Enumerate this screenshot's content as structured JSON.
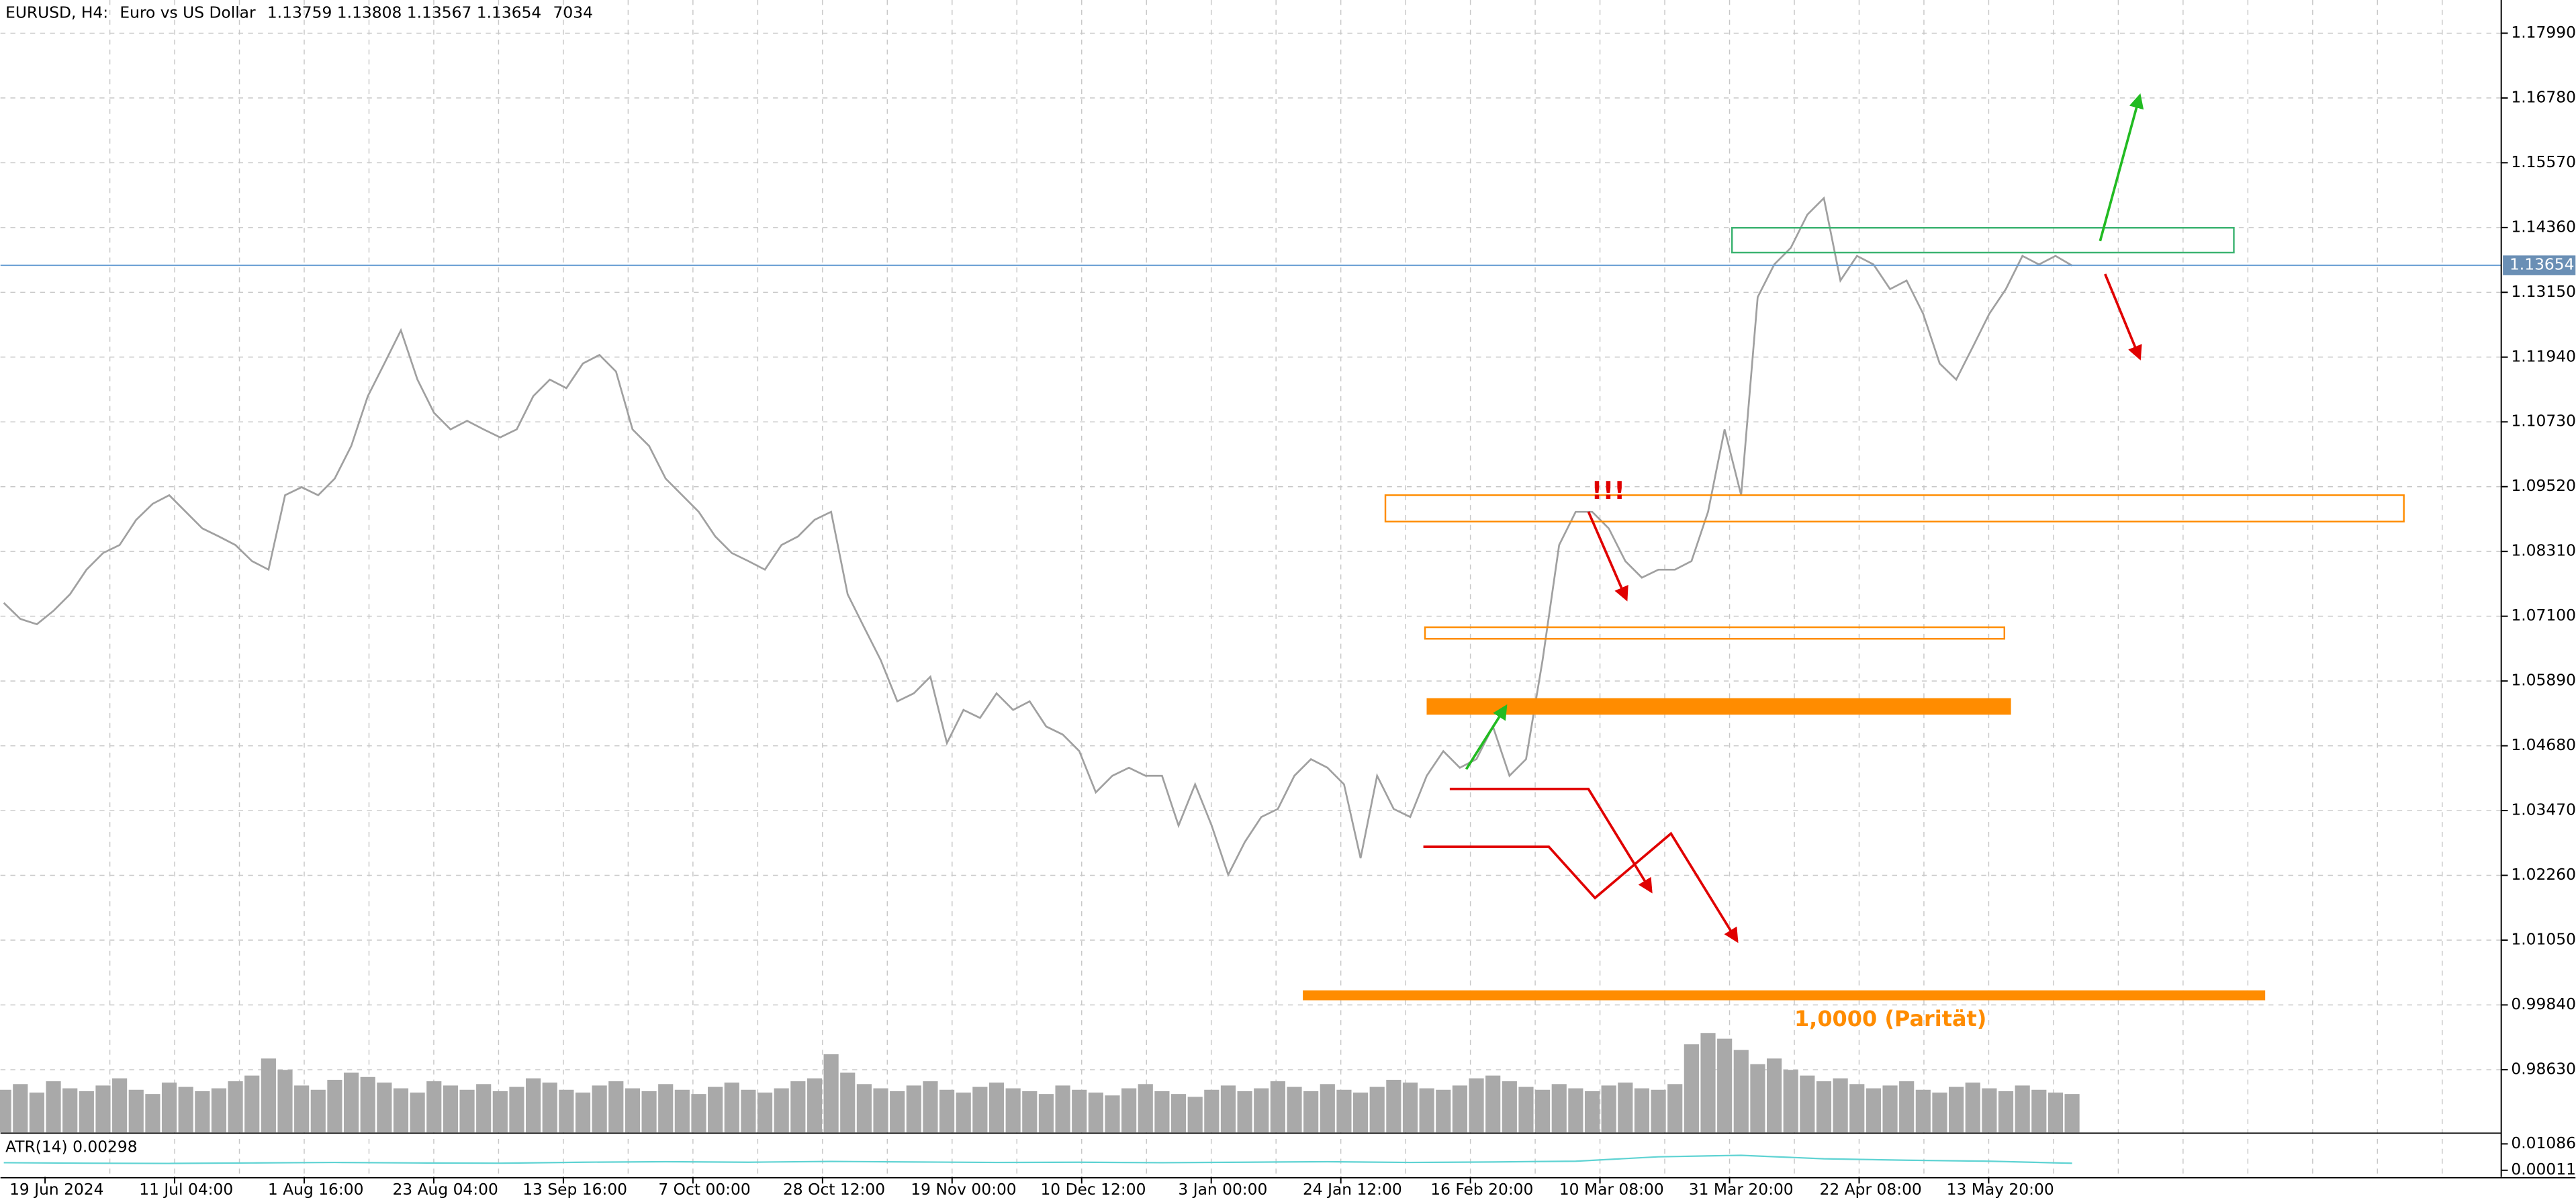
{
  "chart_data": [
    {
      "type": "line",
      "title": "EURUSD, H4:",
      "subtitle": "Euro vs US Dollar",
      "ohlc": [
        1.13759,
        1.13808,
        1.13567,
        1.13654
      ],
      "volume_last": 7034,
      "current_price": 1.13654,
      "color": "#a0a0a0",
      "ylim": [
        0.9746,
        1.1861
      ],
      "yticks": [
        {
          "value": 1.1799,
          "label": "1.17990"
        },
        {
          "value": 1.1678,
          "label": "1.16780"
        },
        {
          "value": 1.1557,
          "label": "1.15570"
        },
        {
          "value": 1.1436,
          "label": "1.14360"
        },
        {
          "value": 1.1315,
          "label": "1.13150"
        },
        {
          "value": 1.1194,
          "label": "1.11940"
        },
        {
          "value": 1.1073,
          "label": "1.10730"
        },
        {
          "value": 1.0952,
          "label": "1.09520"
        },
        {
          "value": 1.0831,
          "label": "1.08310"
        },
        {
          "value": 1.071,
          "label": "1.07100"
        },
        {
          "value": 1.0589,
          "label": "1.05890"
        },
        {
          "value": 1.0468,
          "label": "1.04680"
        },
        {
          "value": 1.0347,
          "label": "1.03470"
        },
        {
          "value": 1.0226,
          "label": "1.02260"
        },
        {
          "value": 1.0105,
          "label": "1.01050"
        },
        {
          "value": 0.9984,
          "label": "0.99840"
        },
        {
          "value": 0.9863,
          "label": "0.98630"
        }
      ],
      "xtick_labels": [
        "19 Jun 2024",
        "11 Jul 04:00",
        "1 Aug 16:00",
        "23 Aug 04:00",
        "13 Sep 16:00",
        "7 Oct 00:00",
        "28 Oct 12:00",
        "19 Nov 00:00",
        "10 Dec 12:00",
        "3 Jan 00:00",
        "24 Jan 12:00",
        "16 Feb 20:00",
        "10 Mar 08:00",
        "31 Mar 20:00",
        "22 Apr 08:00",
        "13 May 20:00"
      ],
      "annotations": [
        "!!!",
        "1,0000 (Parität)"
      ],
      "values": [
        1.0735,
        1.0705,
        1.0695,
        1.072,
        1.0751,
        1.0797,
        1.0828,
        1.0843,
        1.089,
        1.092,
        1.0936,
        1.0905,
        1.0874,
        1.0859,
        1.0843,
        1.0813,
        1.0797,
        1.0936,
        1.0951,
        1.0936,
        1.0967,
        1.1028,
        1.1121,
        1.1182,
        1.1244,
        1.1152,
        1.109,
        1.1059,
        1.1075,
        1.1059,
        1.1044,
        1.1059,
        1.1121,
        1.1152,
        1.1136,
        1.1182,
        1.1198,
        1.1167,
        1.1059,
        1.1028,
        1.0967,
        1.0936,
        1.0905,
        1.0859,
        1.0828,
        1.0813,
        1.0797,
        1.0843,
        1.0859,
        1.089,
        1.0905,
        1.0751,
        1.0689,
        1.0628,
        1.0551,
        1.0566,
        1.0597,
        1.0473,
        1.0535,
        1.052,
        1.0566,
        1.0535,
        1.0551,
        1.0504,
        1.0489,
        1.0458,
        1.0381,
        1.0412,
        1.0427,
        1.0412,
        1.0412,
        1.0319,
        1.0396,
        1.0319,
        1.0227,
        1.0288,
        1.0335,
        1.035,
        1.0412,
        1.0443,
        1.0427,
        1.0396,
        1.0258,
        1.0412,
        1.035,
        1.0335,
        1.0412,
        1.0458,
        1.0427,
        1.0443,
        1.0504,
        1.0412,
        1.0443,
        1.0628,
        1.0843,
        1.0905,
        1.0905,
        1.0874,
        1.0813,
        1.0782,
        1.0797,
        1.0797,
        1.0813,
        1.0905,
        1.1059,
        1.0936,
        1.1306,
        1.1367,
        1.1398,
        1.146,
        1.1491,
        1.1337,
        1.1383,
        1.1367,
        1.1321,
        1.1337,
        1.1275,
        1.1182,
        1.1152,
        1.1213,
        1.1275,
        1.1321,
        1.1383,
        1.1367,
        1.1383,
        1.1365
      ]
    },
    {
      "type": "bar",
      "color": "#a9a9a9",
      "ylim": [
        0,
        100
      ],
      "values": [
        30,
        34,
        28,
        36,
        31,
        29,
        33,
        38,
        30,
        27,
        35,
        32,
        29,
        31,
        36,
        40,
        52,
        44,
        33,
        30,
        37,
        42,
        39,
        35,
        31,
        28,
        36,
        33,
        30,
        34,
        29,
        32,
        38,
        35,
        30,
        28,
        33,
        36,
        31,
        29,
        34,
        30,
        27,
        32,
        35,
        30,
        28,
        31,
        36,
        38,
        55,
        42,
        34,
        31,
        29,
        33,
        36,
        30,
        28,
        32,
        35,
        31,
        29,
        27,
        33,
        30,
        28,
        26,
        31,
        34,
        29,
        27,
        25,
        30,
        33,
        29,
        31,
        36,
        32,
        29,
        34,
        30,
        28,
        32,
        37,
        35,
        31,
        30,
        33,
        38,
        40,
        36,
        32,
        30,
        34,
        31,
        29,
        33,
        35,
        31,
        30,
        34,
        62,
        70,
        66,
        58,
        48,
        52,
        44,
        40,
        36,
        38,
        34,
        31,
        33,
        36,
        30,
        28,
        32,
        35,
        31,
        29,
        33,
        30,
        28,
        27
      ]
    },
    {
      "type": "line",
      "title": "ATR(14)",
      "last": 0.00298,
      "color": "#5fd3d3",
      "ylim": [
        -0.00258,
        0.01422
      ],
      "yticks": [
        0.01086,
        0.00011
      ],
      "values": [
        0.0032,
        0.003,
        0.0029,
        0.0031,
        0.0033,
        0.0031,
        0.003,
        0.0034,
        0.0036,
        0.0034,
        0.0037,
        0.0035,
        0.0033,
        0.0034,
        0.0032,
        0.0034,
        0.0036,
        0.0033,
        0.0035,
        0.0038,
        0.0056,
        0.0062,
        0.0048,
        0.0042,
        0.0038,
        0.00298
      ]
    }
  ]
}
